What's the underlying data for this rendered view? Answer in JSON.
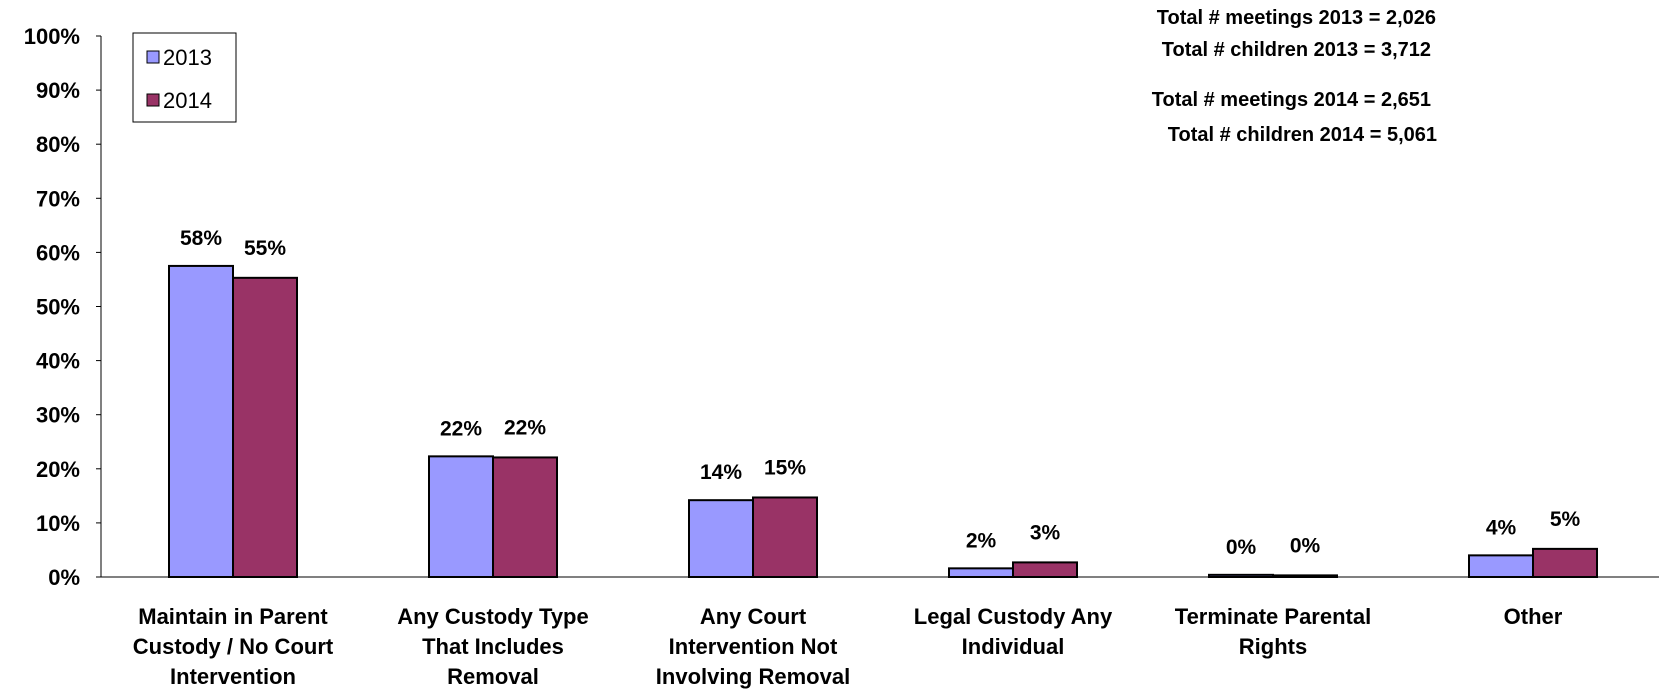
{
  "chart_data": {
    "type": "bar",
    "categories": [
      [
        "Maintain in Parent",
        "Custody / No Court",
        "Intervention"
      ],
      [
        "Any Custody Type",
        "That Includes",
        "Removal"
      ],
      [
        "Any Court",
        "Intervention Not",
        "Involving Removal"
      ],
      [
        "Legal Custody Any",
        "Individual"
      ],
      [
        "Terminate Parental",
        "Rights"
      ],
      [
        "Other"
      ]
    ],
    "series": [
      {
        "name": "2013",
        "values": [
          57.5,
          22.3,
          14.2,
          1.6,
          0.4,
          4.0
        ],
        "labels": [
          "58%",
          "22%",
          "14%",
          "2%",
          "0%",
          "4%"
        ],
        "color": "#9999ff"
      },
      {
        "name": "2014",
        "values": [
          55.3,
          22.1,
          14.7,
          2.7,
          0.3,
          5.2
        ],
        "labels": [
          "55%",
          "22%",
          "15%",
          "3%",
          "0%",
          "5%"
        ],
        "color": "#993366"
      }
    ],
    "ylim": [
      0,
      100
    ],
    "yticks": [
      "0%",
      "10%",
      "20%",
      "30%",
      "40%",
      "50%",
      "60%",
      "70%",
      "80%",
      "90%",
      "100%"
    ],
    "legend_position": "top-left",
    "annotations": [
      "Total # meetings 2013 = 2,026",
      "Total # children 2013 = 3,712",
      "Total # meetings 2014 = 2,651",
      "Total # children 2014 = 5,061"
    ],
    "grid": false
  }
}
